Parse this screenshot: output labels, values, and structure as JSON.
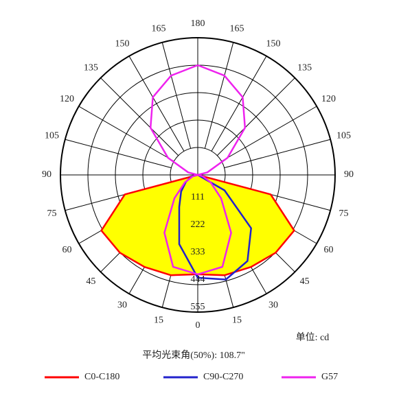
{
  "chart_data": {
    "type": "polar",
    "unit_label": "单位: cd",
    "beam_angle_label": "平均光束角(50%): 108.7\"",
    "rlim": [
      0,
      555
    ],
    "rticks": [
      111,
      222,
      333,
      444,
      555
    ],
    "angle_ticks": [
      0,
      15,
      30,
      45,
      60,
      75,
      90,
      105,
      120,
      135,
      150,
      165,
      180
    ],
    "series": [
      {
        "name": "C0-C180",
        "color": "#ff0000",
        "fill": "#ffff00",
        "symmetric": true,
        "angles": [
          0,
          15,
          30,
          45,
          60,
          75,
          90,
          105,
          120,
          135,
          150,
          165,
          180
        ],
        "values": [
          402,
          420,
          430,
          445,
          450,
          305,
          0,
          0,
          0,
          0,
          0,
          0,
          0
        ]
      },
      {
        "name": "C90-C270",
        "color": "#2222cc",
        "symmetric": false,
        "angles": [
          -180,
          -165,
          -150,
          -135,
          -120,
          -105,
          -90,
          -75,
          -60,
          -45,
          -30,
          -15,
          0,
          15,
          30,
          45,
          60,
          75,
          90,
          105,
          120,
          135,
          150,
          165,
          180
        ],
        "values": [
          0,
          0,
          0,
          0,
          0,
          0,
          0,
          25,
          55,
          95,
          150,
          290,
          416,
          438,
          402,
          305,
          125,
          0,
          0,
          0,
          0,
          0,
          0,
          0,
          0
        ]
      },
      {
        "name": "G57",
        "color": "#ee22ee",
        "symmetric": true,
        "angles": [
          0,
          15,
          30,
          45,
          60,
          75,
          90,
          105,
          120,
          135,
          150,
          165,
          180
        ],
        "values": [
          402,
          385,
          270,
          133,
          60,
          20,
          0,
          40,
          139,
          270,
          363,
          416,
          444
        ]
      }
    ]
  }
}
